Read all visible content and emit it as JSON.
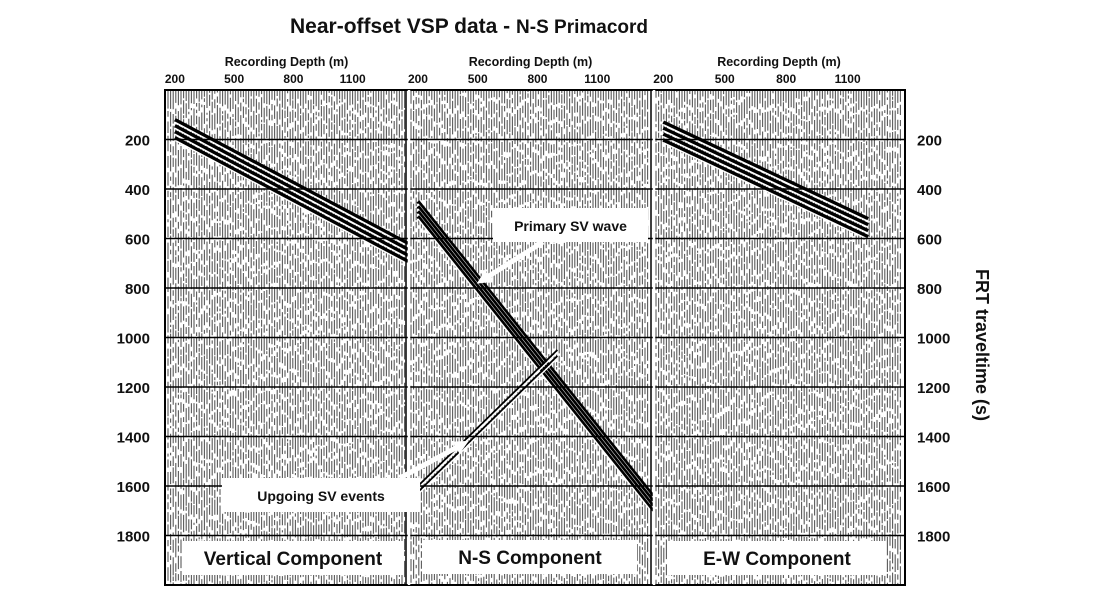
{
  "title_main": "Near-offset VSP data - ",
  "title_sub": "N-S Primacord",
  "chart_data": {
    "type": "seismic-section",
    "panels": [
      {
        "name": "Vertical Component",
        "xlabel": "Recording Depth (m)",
        "xticks": [
          "200",
          "500",
          "800",
          "1100"
        ]
      },
      {
        "name": "N-S  Component",
        "xlabel": "Recording Depth (m)",
        "xticks": [
          "200",
          "500",
          "800",
          "1100"
        ]
      },
      {
        "name": "E-W  Component",
        "xlabel": "Recording Depth (m)",
        "xticks": [
          "200",
          "500",
          "800",
          "1100"
        ]
      }
    ],
    "xlim": [
      150,
      1380
    ],
    "ylabel_right": "FRT traveltime (s)",
    "yticks": [
      200,
      400,
      600,
      800,
      1000,
      1200,
      1400,
      1600,
      1800
    ],
    "ylim": [
      0,
      2000
    ],
    "grid": true,
    "annotations": [
      {
        "text": "Primary SV wave",
        "panel": 1,
        "arrow_to_depth": 500,
        "arrow_to_time": 780
      },
      {
        "text": "Upgoing SV events",
        "panel": 1,
        "arrow_to_depth": 450,
        "arrow_to_time": 1420
      }
    ],
    "events": [
      {
        "panel": 0,
        "kind": "downgoing P",
        "depth": [
          200,
          1380
        ],
        "time": [
          120,
          620
        ]
      },
      {
        "panel": 1,
        "kind": "primary SV",
        "depth": [
          200,
          1380
        ],
        "time": [
          450,
          1640
        ]
      },
      {
        "panel": 1,
        "kind": "upgoing SV",
        "depth": [
          200,
          900
        ],
        "time": [
          1600,
          1050
        ]
      },
      {
        "panel": 2,
        "kind": "downgoing P",
        "depth": [
          200,
          1200
        ],
        "time": [
          130,
          520
        ]
      }
    ]
  }
}
